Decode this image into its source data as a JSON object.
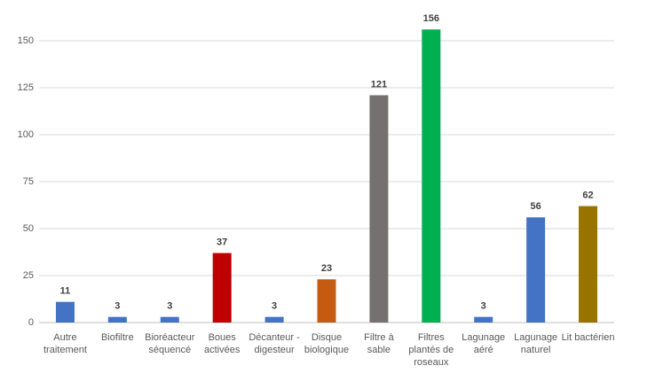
{
  "chart_data": {
    "type": "bar",
    "categories": [
      "Autre traitement",
      "Biofiltre",
      "Bioréacteur séquencé",
      "Boues activées",
      "Décanteur - digesteur",
      "Disque biologique",
      "Filtre à sable",
      "Filtres plantés de roseaux",
      "Lagunage aéré",
      "Lagunage naturel",
      "Lit bactérien"
    ],
    "values": [
      11,
      3,
      3,
      37,
      3,
      23,
      121,
      156,
      3,
      56,
      62
    ],
    "colors": [
      "#4472c4",
      "#4472c4",
      "#4472c4",
      "#c00000",
      "#4472c4",
      "#c55a11",
      "#767171",
      "#00b050",
      "#4472c4",
      "#4472c4",
      "#997300"
    ],
    "ylim": [
      0,
      160
    ],
    "yticks": [
      0,
      25,
      50,
      75,
      100,
      125,
      150
    ],
    "grid": true
  }
}
